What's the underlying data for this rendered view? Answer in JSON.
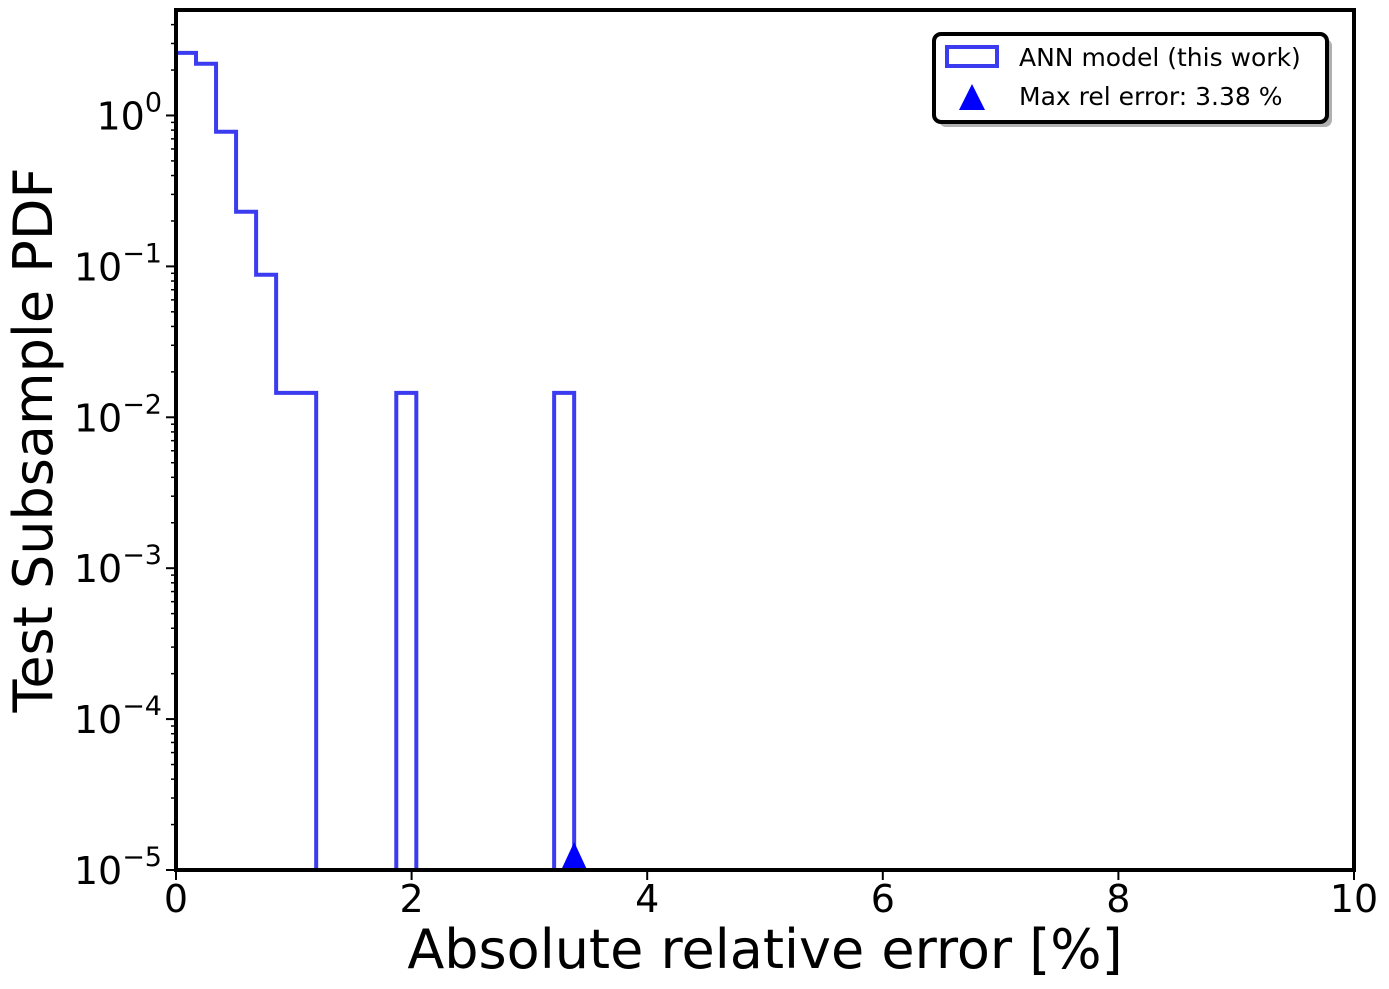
{
  "chart_data": {
    "type": "histogram",
    "title": "",
    "xlabel": "Absolute relative error [%]",
    "ylabel": "Test Subsample PDF",
    "xlim": [
      0,
      10
    ],
    "ylim": [
      1e-05,
      5
    ],
    "yscale": "log",
    "grid": false,
    "legend_position": "top-right",
    "x_ticks": [
      {
        "value": 0,
        "label": "0"
      },
      {
        "value": 2,
        "label": "2"
      },
      {
        "value": 4,
        "label": "4"
      },
      {
        "value": 6,
        "label": "6"
      },
      {
        "value": 8,
        "label": "8"
      },
      {
        "value": 10,
        "label": "10"
      }
    ],
    "y_ticks": [
      {
        "value": 1,
        "base": "10",
        "exp": "0"
      },
      {
        "value": 0.1,
        "base": "10",
        "exp": "−1"
      },
      {
        "value": 0.01,
        "base": "10",
        "exp": "−2"
      },
      {
        "value": 0.001,
        "base": "10",
        "exp": "−3"
      },
      {
        "value": 0.0001,
        "base": "10",
        "exp": "−4"
      },
      {
        "value": 1e-05,
        "base": "10",
        "exp": "−5"
      }
    ],
    "series": [
      {
        "name": "ANN model (this work)",
        "color": "#3b3bf0",
        "bins": [
          {
            "x0": 0.0,
            "x1": 0.17,
            "y": 2.6
          },
          {
            "x0": 0.17,
            "x1": 0.34,
            "y": 2.2
          },
          {
            "x0": 0.34,
            "x1": 0.51,
            "y": 0.78
          },
          {
            "x0": 0.51,
            "x1": 0.68,
            "y": 0.23
          },
          {
            "x0": 0.68,
            "x1": 0.85,
            "y": 0.088
          },
          {
            "x0": 0.85,
            "x1": 1.02,
            "y": 0.0145
          },
          {
            "x0": 1.02,
            "x1": 1.19,
            "y": 0.0145
          },
          {
            "x0": 1.19,
            "x1": 1.87,
            "y": 0
          },
          {
            "x0": 1.87,
            "x1": 2.04,
            "y": 0.0145
          },
          {
            "x0": 2.04,
            "x1": 3.21,
            "y": 0
          },
          {
            "x0": 3.21,
            "x1": 3.38,
            "y": 0.0145
          }
        ]
      }
    ],
    "marker": {
      "name": "Max rel error: 3.38 %",
      "x": 3.38,
      "shape": "triangle",
      "color": "#0000ff"
    }
  }
}
